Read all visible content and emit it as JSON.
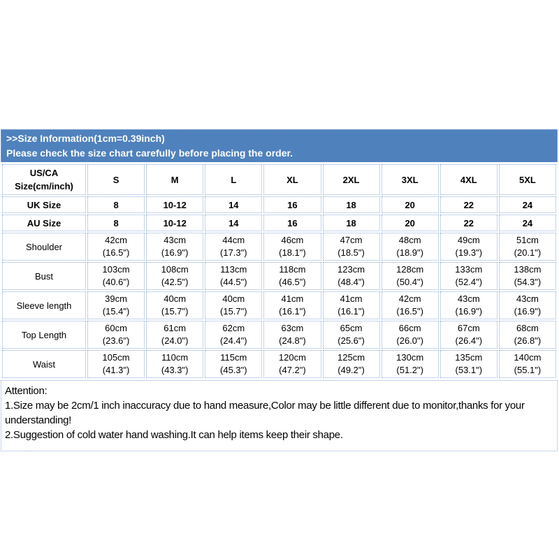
{
  "colors": {
    "banner_fill": "#4f81bd",
    "banner_text": "#ffffff",
    "header_fill": "#c8d9ef",
    "row_label_fill": "#5b9bd5",
    "grid_dotted": "#88abd6",
    "cell_text": "#000000"
  },
  "header": {
    "line1": ">>Size Information(1cm=0.39inch)",
    "line2": "Please check the size chart carefully before placing the order."
  },
  "table": {
    "corner": [
      "US/CA",
      "Size(cm/inch)"
    ],
    "sizes": [
      "S",
      "M",
      "L",
      "XL",
      "2XL",
      "3XL",
      "4XL",
      "5XL"
    ],
    "uk": {
      "label": "UK Size",
      "values": [
        "8",
        "10-12",
        "14",
        "16",
        "18",
        "20",
        "22",
        "24"
      ]
    },
    "au": {
      "label": "AU Size",
      "values": [
        "8",
        "10-12",
        "14",
        "16",
        "18",
        "20",
        "22",
        "24"
      ]
    },
    "rows": [
      {
        "label": "Shoulder",
        "cm": [
          "42cm",
          "43cm",
          "44cm",
          "46cm",
          "47cm",
          "48cm",
          "49cm",
          "51cm"
        ],
        "inch": [
          "(16.5\")",
          "(16.9\")",
          "(17.3\")",
          "(18.1\")",
          "(18.5\")",
          "(18.9\")",
          "(19.3\")",
          "(20.1\")"
        ]
      },
      {
        "label": "Bust",
        "cm": [
          "103cm",
          "108cm",
          "113cm",
          "118cm",
          "123cm",
          "128cm",
          "133cm",
          "138cm"
        ],
        "inch": [
          "(40.6\")",
          "(42.5\")",
          "(44.5\")",
          "(46.5\")",
          "(48.4\")",
          "(50.4\")",
          "(52.4\")",
          "(54.3\")"
        ]
      },
      {
        "label": "Sleeve length",
        "cm": [
          "39cm",
          "40cm",
          "40cm",
          "41cm",
          "41cm",
          "42cm",
          "43cm",
          "43cm"
        ],
        "inch": [
          "(15.4\")",
          "(15.7\")",
          "(15.7\")",
          "(16.1\")",
          "(16.1\")",
          "(16.5\")",
          "(16.9\")",
          "(16.9\")"
        ]
      },
      {
        "label": "Top Length",
        "cm": [
          "60cm",
          "61cm",
          "62cm",
          "63cm",
          "65cm",
          "66cm",
          "67cm",
          "68cm"
        ],
        "inch": [
          "(23.6\")",
          "(24.0\")",
          "(24.4\")",
          "(24.8\")",
          "(25.6\")",
          "(26.0\")",
          "(26.4\")",
          "(26.8\")"
        ]
      },
      {
        "label": "Waist",
        "cm": [
          "105cm",
          "110cm",
          "115cm",
          "120cm",
          "125cm",
          "130cm",
          "135cm",
          "140cm"
        ],
        "inch": [
          "(41.3\")",
          "(43.3\")",
          "(45.3\")",
          "(47.2\")",
          "(49.2\")",
          "(51.2\")",
          "(53.1\")",
          "(55.1\")"
        ]
      }
    ]
  },
  "attention": {
    "lines": [
      "Attention:",
      "1.Size may be 2cm/1 inch inaccuracy due to hand measure,Color may be little different due to monitor,thanks for your",
      "understanding!",
      "2.Suggestion of cold water hand washing.It can help items keep their shape."
    ]
  }
}
